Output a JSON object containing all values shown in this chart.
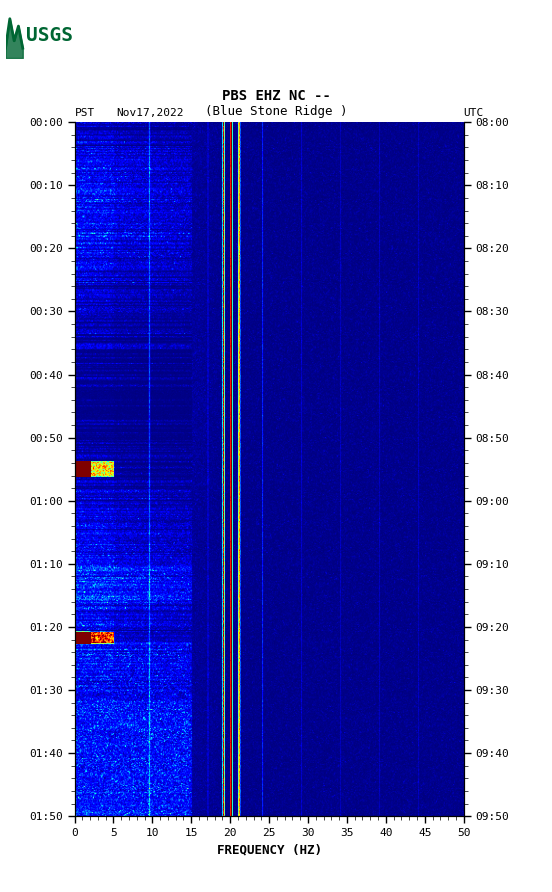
{
  "title_line1": "PBS EHZ NC --",
  "title_line2": "(Blue Stone Ridge )",
  "left_label": "PST",
  "date_label": "Nov17,2022",
  "right_label": "UTC",
  "freq_min": 0,
  "freq_max": 50,
  "freq_ticks": [
    0,
    5,
    10,
    15,
    20,
    25,
    30,
    35,
    40,
    45,
    50
  ],
  "xlabel": "FREQUENCY (HZ)",
  "time_ticks_left": [
    "00:00",
    "00:10",
    "00:20",
    "00:30",
    "00:40",
    "00:50",
    "01:00",
    "01:10",
    "01:20",
    "01:30",
    "01:40",
    "01:50"
  ],
  "time_ticks_right": [
    "08:00",
    "08:10",
    "08:20",
    "08:30",
    "08:40",
    "08:50",
    "09:00",
    "09:10",
    "09:20",
    "09:30",
    "09:40",
    "09:50"
  ],
  "n_time": 720,
  "n_freq": 500,
  "colormap": "jet",
  "usgs_logo_color": "#006633",
  "fig_bg": "#ffffff"
}
